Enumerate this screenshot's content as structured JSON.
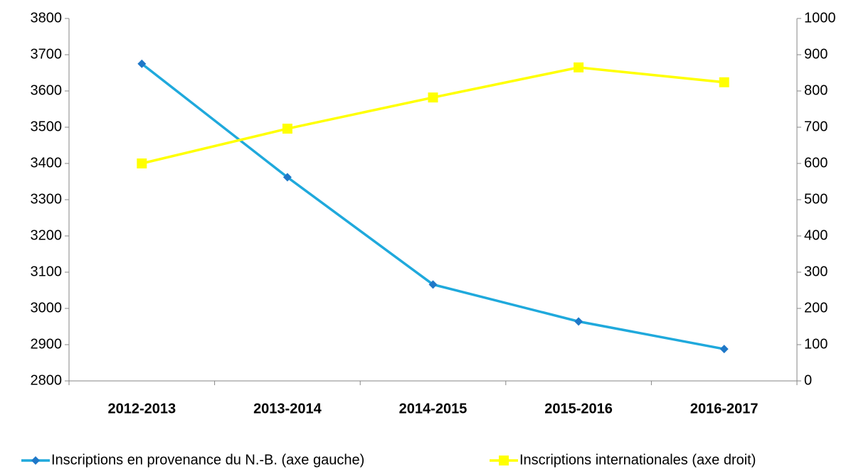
{
  "chart_data": {
    "type": "line",
    "categories": [
      "2012-2013",
      "2013-2014",
      "2014-2015",
      "2015-2016",
      "2016-2017"
    ],
    "series": [
      {
        "name": "Inscriptions en provenance du N.-B. (axe gauche)",
        "color": "#1fa9dc",
        "marker": "diamond",
        "values": [
          3675,
          3362,
          3066,
          2964,
          2888
        ]
      },
      {
        "name": "Inscriptions internationales (axe droit)",
        "color": "#ffff00",
        "marker": "square",
        "axis": "y2",
        "values": [
          600,
          696,
          782,
          865,
          824
        ]
      }
    ],
    "ylim": [
      2800,
      3800
    ],
    "yticks": [
      2800,
      2900,
      3000,
      3100,
      3200,
      3300,
      3400,
      3500,
      3600,
      3700,
      3800
    ],
    "y2lim": [
      0,
      1000
    ],
    "y2ticks": [
      0,
      100,
      200,
      300,
      400,
      500,
      600,
      700,
      800,
      900,
      1000
    ],
    "grid": false,
    "legend": "bottom"
  }
}
